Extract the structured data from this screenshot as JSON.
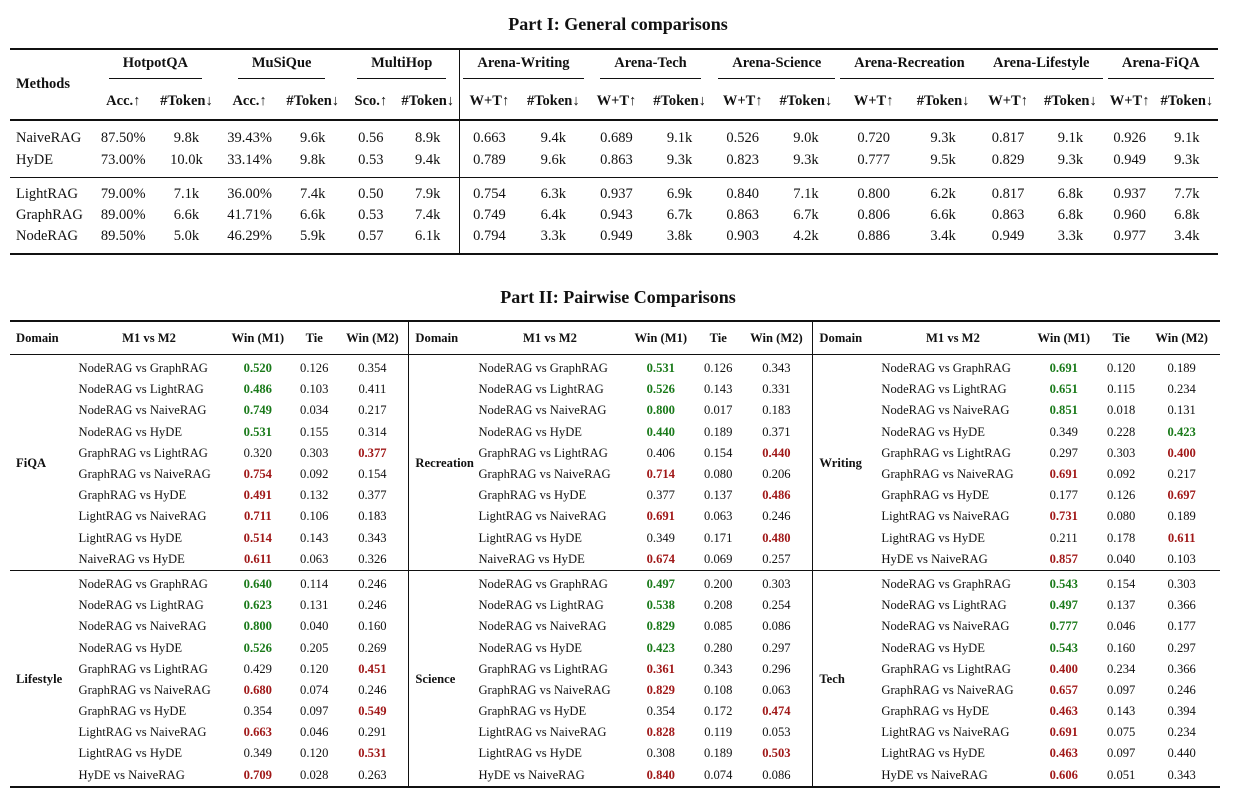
{
  "part1": {
    "title": "Part I: General comparisons",
    "methods_label": "Methods",
    "groups": [
      "HotpotQA",
      "MuSiQue",
      "MultiHop",
      "Arena-Writing",
      "Arena-Tech",
      "Arena-Science",
      "Arena-Recreation",
      "Arena-Lifestyle",
      "Arena-FiQA"
    ],
    "subheaders": [
      "Acc.↑",
      "#Token↓",
      "Acc.↑",
      "#Token↓",
      "Sco.↑",
      "#Token↓",
      "W+T↑",
      "#Token↓",
      "W+T↑",
      "#Token↓",
      "W+T↑",
      "#Token↓",
      "W+T↑",
      "#Token↓",
      "W+T↑",
      "#Token↓",
      "W+T↑",
      "#Token↓"
    ],
    "rows": [
      {
        "method": "NaiveRAG",
        "values": [
          "87.50%",
          "9.8k",
          "39.43%",
          "9.6k",
          "0.56",
          "8.9k",
          "0.663",
          "9.4k",
          "0.689",
          "9.1k",
          "0.526",
          "9.0k",
          "0.720",
          "9.3k",
          "0.817",
          "9.1k",
          "0.926",
          "9.1k"
        ]
      },
      {
        "method": "HyDE",
        "values": [
          "73.00%",
          "10.0k",
          "33.14%",
          "9.8k",
          "0.53",
          "9.4k",
          "0.789",
          "9.6k",
          "0.863",
          "9.3k",
          "0.823",
          "9.3k",
          "0.777",
          "9.5k",
          "0.829",
          "9.3k",
          "0.949",
          "9.3k"
        ]
      },
      {
        "method": "LightRAG",
        "values": [
          "79.00%",
          "7.1k",
          "36.00%",
          "7.4k",
          "0.50",
          "7.9k",
          "0.754",
          "6.3k",
          "0.937",
          "6.9k",
          "0.840",
          "7.1k",
          "0.800",
          "6.2k",
          "0.817",
          "6.8k",
          "0.937",
          "7.7k"
        ]
      },
      {
        "method": "GraphRAG",
        "values": [
          "89.00%",
          "6.6k",
          "41.71%",
          "6.6k",
          "0.53",
          "7.4k",
          "0.749",
          "6.4k",
          "0.943",
          "6.7k",
          "0.863",
          "6.7k",
          "0.806",
          "6.6k",
          "0.863",
          "6.8k",
          "0.960",
          "6.8k"
        ]
      },
      {
        "method": "NodeRAG",
        "values": [
          "89.50%",
          "5.0k",
          "46.29%",
          "5.9k",
          "0.57",
          "6.1k",
          "0.794",
          "3.3k",
          "0.949",
          "3.8k",
          "0.903",
          "4.2k",
          "0.886",
          "3.4k",
          "0.949",
          "3.3k",
          "0.977",
          "3.4k"
        ]
      }
    ]
  },
  "part2": {
    "title": "Part II: Pairwise Comparisons",
    "headers": [
      "Domain",
      "M1 vs M2",
      "Win (M1)",
      "Tie",
      "Win (M2)"
    ],
    "colors": {
      "win": "#1a7a1a",
      "loss": "#a01818"
    },
    "blocks": [
      [
        {
          "domain": "FiQA",
          "rows": [
            [
              "NodeRAG vs GraphRAG",
              "0.520",
              "0.126",
              "0.354",
              1
            ],
            [
              "NodeRAG vs LightRAG",
              "0.486",
              "0.103",
              "0.411",
              1
            ],
            [
              "NodeRAG vs NaiveRAG",
              "0.749",
              "0.034",
              "0.217",
              1
            ],
            [
              "NodeRAG vs HyDE",
              "0.531",
              "0.155",
              "0.314",
              1
            ],
            [
              "GraphRAG vs LightRAG",
              "0.320",
              "0.303",
              "0.377",
              3
            ],
            [
              "GraphRAG vs NaiveRAG",
              "0.754",
              "0.092",
              "0.154",
              2
            ],
            [
              "GraphRAG vs HyDE",
              "0.491",
              "0.132",
              "0.377",
              2
            ],
            [
              "LightRAG vs NaiveRAG",
              "0.711",
              "0.106",
              "0.183",
              2
            ],
            [
              "LightRAG vs HyDE",
              "0.514",
              "0.143",
              "0.343",
              2
            ],
            [
              "NaiveRAG vs HyDE",
              "0.611",
              "0.063",
              "0.326",
              2
            ]
          ]
        },
        {
          "domain": "Recreation",
          "rows": [
            [
              "NodeRAG vs GraphRAG",
              "0.531",
              "0.126",
              "0.343",
              1
            ],
            [
              "NodeRAG vs LightRAG",
              "0.526",
              "0.143",
              "0.331",
              1
            ],
            [
              "NodeRAG vs NaiveRAG",
              "0.800",
              "0.017",
              "0.183",
              1
            ],
            [
              "NodeRAG vs HyDE",
              "0.440",
              "0.189",
              "0.371",
              1
            ],
            [
              "GraphRAG vs LightRAG",
              "0.406",
              "0.154",
              "0.440",
              3
            ],
            [
              "GraphRAG vs NaiveRAG",
              "0.714",
              "0.080",
              "0.206",
              2
            ],
            [
              "GraphRAG vs HyDE",
              "0.377",
              "0.137",
              "0.486",
              3
            ],
            [
              "LightRAG vs NaiveRAG",
              "0.691",
              "0.063",
              "0.246",
              2
            ],
            [
              "LightRAG vs HyDE",
              "0.349",
              "0.171",
              "0.480",
              3
            ],
            [
              "NaiveRAG vs HyDE",
              "0.674",
              "0.069",
              "0.257",
              2
            ]
          ]
        },
        {
          "domain": "Writing",
          "rows": [
            [
              "NodeRAG vs GraphRAG",
              "0.691",
              "0.120",
              "0.189",
              1
            ],
            [
              "NodeRAG vs LightRAG",
              "0.651",
              "0.115",
              "0.234",
              1
            ],
            [
              "NodeRAG vs NaiveRAG",
              "0.851",
              "0.018",
              "0.131",
              1
            ],
            [
              "NodeRAG vs HyDE",
              "0.349",
              "0.228",
              "0.423",
              4
            ],
            [
              "GraphRAG vs LightRAG",
              "0.297",
              "0.303",
              "0.400",
              3
            ],
            [
              "GraphRAG vs NaiveRAG",
              "0.691",
              "0.092",
              "0.217",
              2
            ],
            [
              "GraphRAG vs HyDE",
              "0.177",
              "0.126",
              "0.697",
              3
            ],
            [
              "LightRAG vs NaiveRAG",
              "0.731",
              "0.080",
              "0.189",
              2
            ],
            [
              "LightRAG vs HyDE",
              "0.211",
              "0.178",
              "0.611",
              3
            ],
            [
              "HyDE vs NaiveRAG",
              "0.857",
              "0.040",
              "0.103",
              2
            ]
          ]
        }
      ],
      [
        {
          "domain": "Lifestyle",
          "rows": [
            [
              "NodeRAG vs GraphRAG",
              "0.640",
              "0.114",
              "0.246",
              1
            ],
            [
              "NodeRAG vs LightRAG",
              "0.623",
              "0.131",
              "0.246",
              1
            ],
            [
              "NodeRAG vs NaiveRAG",
              "0.800",
              "0.040",
              "0.160",
              1
            ],
            [
              "NodeRAG vs HyDE",
              "0.526",
              "0.205",
              "0.269",
              1
            ],
            [
              "GraphRAG vs LightRAG",
              "0.429",
              "0.120",
              "0.451",
              3
            ],
            [
              "GraphRAG vs NaiveRAG",
              "0.680",
              "0.074",
              "0.246",
              2
            ],
            [
              "GraphRAG vs HyDE",
              "0.354",
              "0.097",
              "0.549",
              3
            ],
            [
              "LightRAG vs NaiveRAG",
              "0.663",
              "0.046",
              "0.291",
              2
            ],
            [
              "LightRAG vs HyDE",
              "0.349",
              "0.120",
              "0.531",
              3
            ],
            [
              "HyDE vs NaiveRAG",
              "0.709",
              "0.028",
              "0.263",
              2
            ]
          ]
        },
        {
          "domain": "Science",
          "rows": [
            [
              "NodeRAG vs GraphRAG",
              "0.497",
              "0.200",
              "0.303",
              1
            ],
            [
              "NodeRAG vs LightRAG",
              "0.538",
              "0.208",
              "0.254",
              1
            ],
            [
              "NodeRAG vs NaiveRAG",
              "0.829",
              "0.085",
              "0.086",
              1
            ],
            [
              "NodeRAG vs HyDE",
              "0.423",
              "0.280",
              "0.297",
              1
            ],
            [
              "GraphRAG vs LightRAG",
              "0.361",
              "0.343",
              "0.296",
              2
            ],
            [
              "GraphRAG vs NaiveRAG",
              "0.829",
              "0.108",
              "0.063",
              2
            ],
            [
              "GraphRAG vs HyDE",
              "0.354",
              "0.172",
              "0.474",
              3
            ],
            [
              "LightRAG vs NaiveRAG",
              "0.828",
              "0.119",
              "0.053",
              2
            ],
            [
              "LightRAG vs HyDE",
              "0.308",
              "0.189",
              "0.503",
              3
            ],
            [
              "HyDE vs NaiveRAG",
              "0.840",
              "0.074",
              "0.086",
              2
            ]
          ]
        },
        {
          "domain": "Tech",
          "rows": [
            [
              "NodeRAG vs GraphRAG",
              "0.543",
              "0.154",
              "0.303",
              1
            ],
            [
              "NodeRAG vs LightRAG",
              "0.497",
              "0.137",
              "0.366",
              1
            ],
            [
              "NodeRAG vs NaiveRAG",
              "0.777",
              "0.046",
              "0.177",
              1
            ],
            [
              "NodeRAG vs HyDE",
              "0.543",
              "0.160",
              "0.297",
              1
            ],
            [
              "GraphRAG vs LightRAG",
              "0.400",
              "0.234",
              "0.366",
              2
            ],
            [
              "GraphRAG vs NaiveRAG",
              "0.657",
              "0.097",
              "0.246",
              2
            ],
            [
              "GraphRAG vs HyDE",
              "0.463",
              "0.143",
              "0.394",
              2
            ],
            [
              "LightRAG vs NaiveRAG",
              "0.691",
              "0.075",
              "0.234",
              2
            ],
            [
              "LightRAG vs HyDE",
              "0.463",
              "0.097",
              "0.440",
              2
            ],
            [
              "HyDE vs NaiveRAG",
              "0.606",
              "0.051",
              "0.343",
              2
            ]
          ]
        }
      ]
    ]
  }
}
